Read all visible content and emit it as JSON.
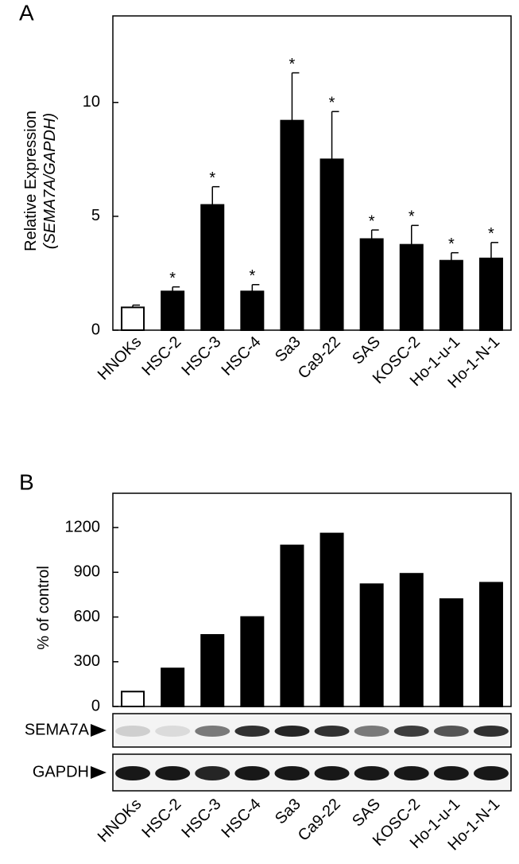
{
  "chart_data": [
    {
      "type": "bar",
      "panel": "A",
      "ylabel": [
        "Relative Expression",
        "(SEMA7A/GAPDH)"
      ],
      "categories": [
        "HNOKs",
        "HSC-2",
        "HSC-3",
        "HSC-4",
        "Sa3",
        "Ca9-22",
        "SAS",
        "KOSC-2",
        "Ho-1-u-1",
        "Ho-1-N-1"
      ],
      "values": [
        1.0,
        1.7,
        5.5,
        1.7,
        9.2,
        7.5,
        4.0,
        3.75,
        3.05,
        3.15
      ],
      "errors": [
        0.1,
        0.2,
        0.8,
        0.3,
        2.1,
        2.1,
        0.4,
        0.85,
        0.35,
        0.7
      ],
      "colors": [
        "#ffffff",
        "#000000",
        "#000000",
        "#000000",
        "#000000",
        "#000000",
        "#000000",
        "#000000",
        "#000000",
        "#000000"
      ],
      "significance_marker": "*",
      "significant": [
        false,
        true,
        true,
        true,
        true,
        true,
        true,
        true,
        true,
        true
      ],
      "ylim": [
        0,
        13.8
      ],
      "yticks": [
        0,
        5,
        10
      ]
    },
    {
      "type": "bar",
      "panel": "B",
      "ylabel": [
        "% of control"
      ],
      "categories": [
        "HNOKs",
        "HSC-2",
        "HSC-3",
        "HSC-4",
        "Sa3",
        "Ca9-22",
        "SAS",
        "KOSC-2",
        "Ho-1-u-1",
        "Ho-1-N-1"
      ],
      "values": [
        100,
        255,
        480,
        600,
        1080,
        1160,
        820,
        890,
        720,
        830
      ],
      "colors": [
        "#ffffff",
        "#000000",
        "#000000",
        "#000000",
        "#000000",
        "#000000",
        "#000000",
        "#000000",
        "#000000",
        "#000000"
      ],
      "ylim": [
        0,
        1430
      ],
      "yticks": [
        0,
        300,
        600,
        900,
        1200
      ],
      "blot_labels": [
        "SEMA7A",
        "GAPDH"
      ]
    }
  ]
}
